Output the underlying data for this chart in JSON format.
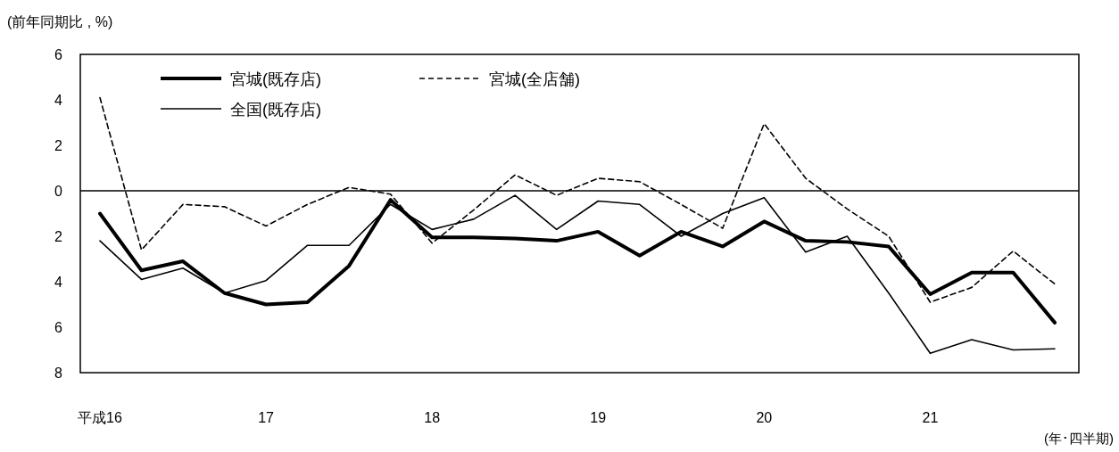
{
  "chart_data": {
    "type": "line",
    "ylabel": "(前年同期比 , %)",
    "xlabel": "(年･四半期)",
    "categories": [
      "平成16",
      null,
      null,
      null,
      "17",
      null,
      null,
      null,
      "18",
      null,
      null,
      null,
      "19",
      null,
      null,
      null,
      "20",
      null,
      null,
      null,
      "21",
      null,
      null,
      null
    ],
    "ylim": [
      -8,
      6
    ],
    "yticks": [
      6,
      4,
      2,
      0,
      {
        "value": -2,
        "label": "2"
      },
      {
        "value": -4,
        "label": "4"
      },
      {
        "value": -6,
        "label": "6"
      },
      {
        "value": -8,
        "label": "8"
      }
    ],
    "ref_lines": [
      {
        "axis": "y",
        "value": 0,
        "color": "#000000"
      }
    ],
    "legend": "top left",
    "grid": false,
    "marker": "none",
    "series": [
      {
        "name": "宮城(既存店)",
        "color": "#000000",
        "line_style": "solid",
        "values": [
          -1.0,
          -3.5,
          -3.1,
          -4.5,
          -5.0,
          -4.9,
          -3.3,
          -0.4,
          -2.05,
          -2.05,
          -2.1,
          -2.2,
          -1.8,
          -2.85,
          -1.8,
          -2.45,
          -1.35,
          -2.2,
          -2.25,
          -2.45,
          -4.55,
          -3.6,
          -3.6,
          -5.8
        ]
      },
      {
        "name": "宮城(全店舗)",
        "color": "#000000",
        "line_style": "dashed",
        "values": [
          4.1,
          -2.6,
          -0.6,
          -0.7,
          -1.55,
          -0.6,
          0.15,
          -0.15,
          -2.3,
          -0.85,
          0.7,
          -0.2,
          0.55,
          0.4,
          -0.6,
          -1.65,
          2.95,
          0.55,
          -0.8,
          -2.0,
          -4.9,
          -4.25,
          -2.65,
          -4.1
        ]
      },
      {
        "name": "全国(既存店)",
        "color": "#000000",
        "line_style": "solid",
        "values": [
          -2.2,
          -3.9,
          -3.4,
          -4.5,
          -3.95,
          -2.4,
          -2.4,
          -0.6,
          -1.7,
          -1.25,
          -0.2,
          -1.7,
          -0.45,
          -0.6,
          -2.0,
          -1.0,
          -0.3,
          -2.7,
          -2.0,
          -4.5,
          -7.15,
          -6.55,
          -7.0,
          -6.95
        ]
      }
    ]
  }
}
